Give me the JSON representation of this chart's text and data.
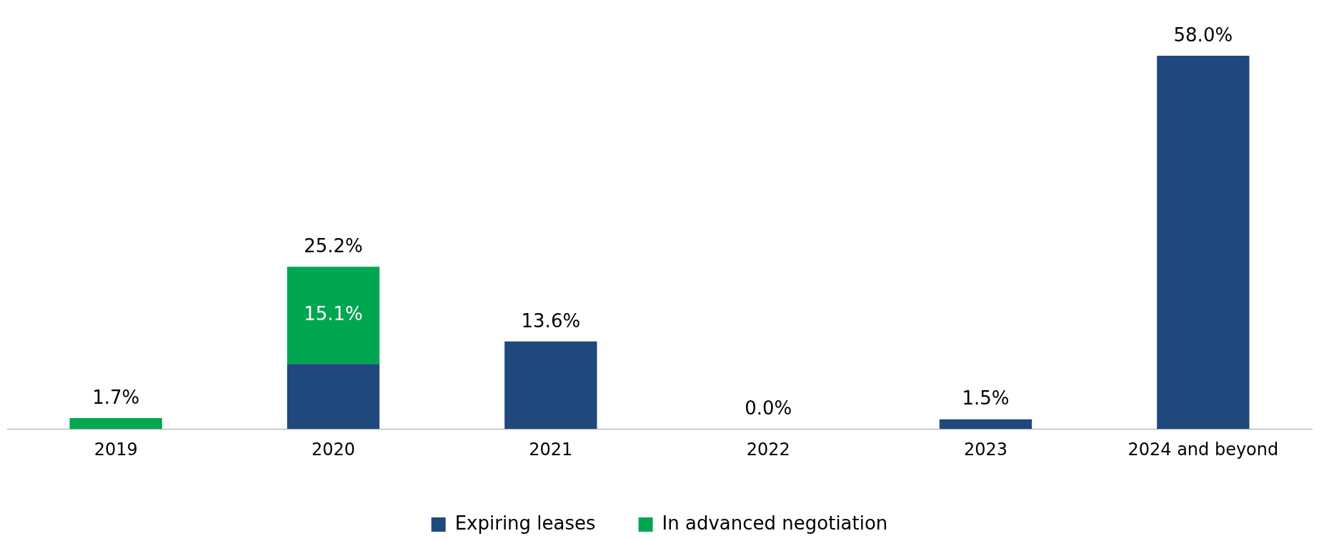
{
  "chart_data": {
    "type": "bar",
    "stacked": true,
    "categories": [
      "2019",
      "2020",
      "2021",
      "2022",
      "2023",
      "2024 and beyond"
    ],
    "series": [
      {
        "name": "Expiring leases",
        "color": "#1f497d",
        "values": [
          0,
          10.1,
          13.6,
          0.0,
          1.5,
          58.0
        ]
      },
      {
        "name": "In advanced negotiation",
        "color": "#00a651",
        "values": [
          1.7,
          15.1,
          0,
          0,
          0,
          0
        ],
        "value_labels": [
          null,
          "15.1%",
          null,
          null,
          null,
          null
        ]
      }
    ],
    "totals": [
      "1.7%",
      "25.2%",
      "13.6%",
      "0.0%",
      "1.5%",
      "58.0%"
    ],
    "grid": false,
    "legend": "bottom",
    "tick_labels": "x"
  }
}
